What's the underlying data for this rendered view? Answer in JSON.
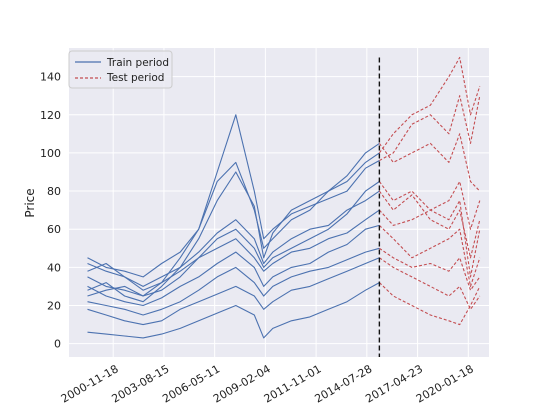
{
  "chart_data": {
    "type": "line",
    "ylabel": "Price",
    "xlabel": "",
    "ylim": [
      -7,
      155
    ],
    "xlim": [
      "1998-07-01",
      "2021-03-01"
    ],
    "yticks": [
      0,
      20,
      40,
      60,
      80,
      100,
      120,
      140
    ],
    "xticks": [
      "2000-11-18",
      "2003-08-15",
      "2006-05-11",
      "2009-02-04",
      "2011-11-01",
      "2014-07-28",
      "2017-04-23",
      "2020-01-18"
    ],
    "split_date": "2015-04-01",
    "grid": true,
    "legend_position": "top-left",
    "legend": [
      {
        "label": "Train period",
        "color": "#4c72b0",
        "style": "solid"
      },
      {
        "label": "Test period",
        "color": "#c44e52",
        "style": "dashed"
      }
    ],
    "series_dates": [
      "1999-07-01",
      "2000-07-01",
      "2001-07-01",
      "2002-07-01",
      "2003-07-01",
      "2004-07-01",
      "2005-07-01",
      "2006-07-01",
      "2007-07-01",
      "2008-07-01",
      "2009-01-01",
      "2009-07-01",
      "2010-07-01",
      "2011-07-01",
      "2012-07-01",
      "2013-07-01",
      "2014-07-01",
      "2015-04-01",
      "2016-01-01",
      "2017-01-01",
      "2018-01-01",
      "2019-01-01",
      "2019-08-01",
      "2020-03-01",
      "2020-09-01"
    ],
    "series": [
      {
        "values": [
          28,
          32,
          25,
          22,
          30,
          40,
          55,
          75,
          90,
          72,
          45,
          58,
          70,
          75,
          80,
          85,
          95,
          100,
          110,
          120,
          125,
          140,
          150,
          120,
          135
        ]
      },
      {
        "values": [
          45,
          40,
          38,
          35,
          42,
          48,
          60,
          90,
          120,
          80,
          55,
          60,
          68,
          72,
          76,
          80,
          92,
          96,
          100,
          115,
          120,
          110,
          130,
          105,
          130
        ]
      },
      {
        "values": [
          35,
          30,
          28,
          25,
          32,
          45,
          60,
          85,
          95,
          70,
          50,
          55,
          65,
          70,
          80,
          88,
          100,
          105,
          95,
          100,
          105,
          95,
          110,
          85,
          80
        ]
      },
      {
        "values": [
          25,
          28,
          30,
          25,
          28,
          35,
          45,
          55,
          60,
          50,
          40,
          45,
          50,
          55,
          60,
          68,
          80,
          85,
          75,
          80,
          70,
          75,
          85,
          60,
          75
        ]
      },
      {
        "values": [
          38,
          42,
          35,
          30,
          35,
          40,
          48,
          58,
          65,
          55,
          42,
          48,
          55,
          60,
          62,
          70,
          75,
          80,
          70,
          78,
          65,
          60,
          70,
          45,
          65
        ]
      },
      {
        "values": [
          42,
          38,
          35,
          28,
          32,
          38,
          45,
          50,
          55,
          45,
          38,
          42,
          48,
          50,
          55,
          58,
          65,
          70,
          62,
          65,
          70,
          65,
          75,
          35,
          60
        ]
      },
      {
        "values": [
          30,
          25,
          22,
          20,
          24,
          30,
          35,
          42,
          48,
          40,
          30,
          35,
          40,
          42,
          48,
          52,
          60,
          62,
          55,
          45,
          50,
          55,
          60,
          30,
          45
        ]
      },
      {
        "values": [
          22,
          20,
          18,
          15,
          18,
          22,
          28,
          35,
          40,
          32,
          25,
          30,
          35,
          38,
          40,
          44,
          48,
          50,
          45,
          40,
          42,
          38,
          45,
          28,
          35
        ]
      },
      {
        "values": [
          18,
          15,
          12,
          10,
          12,
          18,
          22,
          26,
          30,
          25,
          18,
          22,
          28,
          30,
          34,
          38,
          42,
          45,
          40,
          35,
          30,
          25,
          30,
          18,
          25
        ]
      },
      {
        "values": [
          6,
          5,
          4,
          3,
          5,
          8,
          12,
          16,
          20,
          15,
          3,
          8,
          12,
          14,
          18,
          22,
          28,
          32,
          25,
          20,
          15,
          12,
          10,
          20,
          30
        ]
      }
    ]
  }
}
